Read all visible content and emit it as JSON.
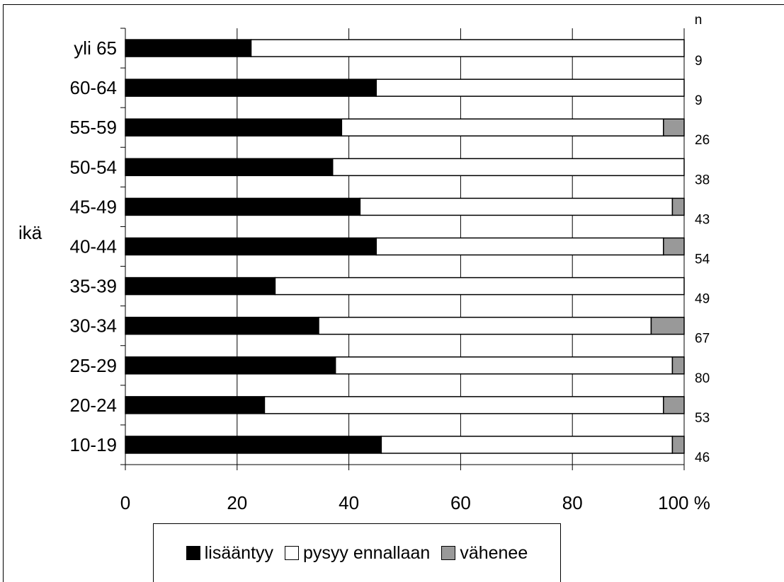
{
  "chart_data": {
    "type": "bar",
    "orientation": "horizontal",
    "stacked": true,
    "categories": [
      "yli 65",
      "60-64",
      "55-59",
      "50-54",
      "45-49",
      "40-44",
      "35-39",
      "30-34",
      "25-29",
      "20-24",
      "10-19"
    ],
    "series": [
      {
        "name": "lisääntyy",
        "color": "#000000",
        "values": [
          22.5,
          44.9,
          38.7,
          37.1,
          42.0,
          44.9,
          26.8,
          34.6,
          37.6,
          24.9,
          45.8
        ]
      },
      {
        "name": "pysyy ennallaan",
        "color": "#ffffff",
        "values": [
          77.5,
          55.1,
          57.6,
          62.9,
          55.9,
          51.4,
          73.2,
          59.5,
          60.3,
          71.4,
          52.1
        ]
      },
      {
        "name": "vähenee",
        "color": "#999999",
        "values": [
          0,
          0,
          3.7,
          0,
          2.1,
          3.7,
          0,
          5.9,
          2.1,
          3.7,
          2.1
        ]
      }
    ],
    "n_label": "n",
    "n_values": [
      "9",
      "9",
      "26",
      "38",
      "43",
      "54",
      "49",
      "67",
      "80",
      "53",
      "46"
    ],
    "ylabel": "ikä",
    "xlim": [
      0,
      100
    ],
    "x_ticks": [
      "0",
      "20",
      "40",
      "60",
      "80",
      "100 %"
    ],
    "grid": "vertical",
    "legend_position": "bottom"
  }
}
